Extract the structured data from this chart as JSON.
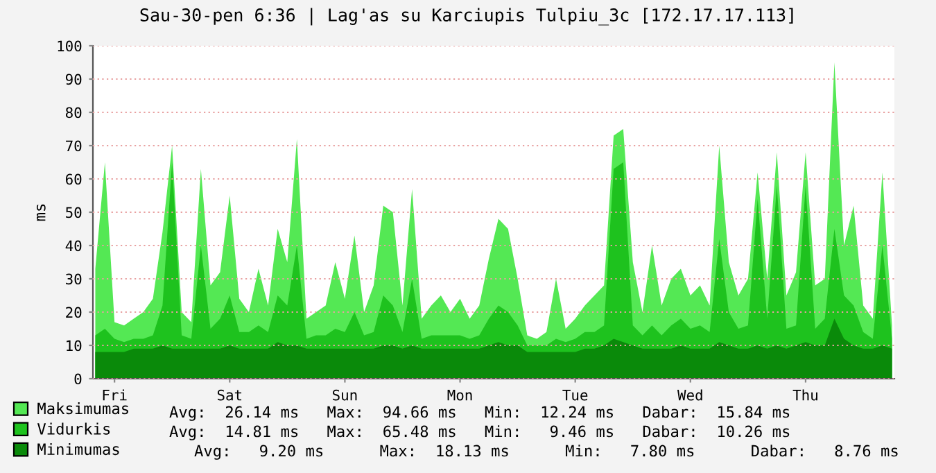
{
  "chart_data": {
    "type": "area",
    "title": "Sau-30-pen 6:36 | Lag'as su Karciupis Tulpiu_3c [172.17.17.113]",
    "ylabel": "ms",
    "categories": [
      null,
      null,
      "Fri",
      null,
      null,
      null,
      null,
      null,
      null,
      null,
      null,
      null,
      null,
      null,
      "Sat",
      null,
      null,
      null,
      null,
      null,
      null,
      null,
      null,
      null,
      null,
      null,
      "Sun",
      null,
      null,
      null,
      null,
      null,
      null,
      null,
      null,
      null,
      null,
      null,
      "Mon",
      null,
      null,
      null,
      null,
      null,
      null,
      null,
      null,
      null,
      null,
      null,
      "Tue",
      null,
      null,
      null,
      null,
      null,
      null,
      null,
      null,
      null,
      null,
      null,
      "Wed",
      null,
      null,
      null,
      null,
      null,
      null,
      null,
      null,
      null,
      null,
      null,
      "Thu",
      null,
      null,
      null,
      null,
      null,
      null,
      null,
      null,
      null
    ],
    "series": [
      {
        "name": "Maksimumas",
        "color": "#54e854",
        "values": [
          33,
          65,
          17,
          16,
          18,
          20,
          24,
          44,
          70,
          20,
          17,
          63,
          28,
          32,
          55,
          24,
          20,
          33,
          22,
          45,
          35,
          72,
          18,
          20,
          22,
          35,
          24,
          43,
          20,
          28,
          52,
          50,
          22,
          57,
          18,
          22,
          25,
          20,
          24,
          18,
          22,
          36,
          48,
          45,
          30,
          13,
          12,
          14,
          30,
          15,
          18,
          22,
          25,
          28,
          73,
          75,
          35,
          20,
          40,
          22,
          30,
          33,
          25,
          28,
          22,
          70,
          35,
          25,
          30,
          62,
          30,
          68,
          25,
          32,
          68,
          28,
          30,
          95,
          40,
          52,
          22,
          18,
          62,
          16
        ]
      },
      {
        "name": "Vidurkis",
        "color": "#1ec21e",
        "values": [
          13,
          15,
          12,
          11,
          12,
          12,
          13,
          22,
          65,
          13,
          12,
          40,
          15,
          18,
          25,
          14,
          14,
          16,
          14,
          25,
          22,
          40,
          12,
          13,
          13,
          15,
          14,
          20,
          13,
          14,
          25,
          22,
          14,
          30,
          12,
          13,
          13,
          13,
          13,
          12,
          13,
          18,
          22,
          20,
          16,
          10,
          10,
          10,
          12,
          11,
          12,
          14,
          14,
          16,
          63,
          65,
          16,
          13,
          16,
          13,
          16,
          18,
          15,
          16,
          14,
          42,
          20,
          15,
          16,
          54,
          18,
          58,
          15,
          16,
          58,
          15,
          18,
          45,
          25,
          22,
          14,
          12,
          40,
          12
        ]
      },
      {
        "name": "Minimumas",
        "color": "#0a8a0a",
        "values": [
          8,
          8,
          8,
          8,
          9,
          9,
          9,
          10,
          9,
          9,
          9,
          9,
          9,
          9,
          10,
          9,
          9,
          9,
          9,
          11,
          10,
          10,
          9,
          9,
          9,
          9,
          9,
          9,
          9,
          9,
          10,
          10,
          9,
          10,
          9,
          9,
          9,
          9,
          9,
          9,
          9,
          10,
          11,
          10,
          10,
          8,
          8,
          8,
          8,
          8,
          8,
          9,
          9,
          10,
          12,
          11,
          10,
          9,
          9,
          9,
          9,
          10,
          9,
          9,
          9,
          11,
          10,
          9,
          9,
          10,
          9,
          10,
          9,
          10,
          11,
          10,
          10,
          18,
          12,
          10,
          9,
          9,
          10,
          9
        ]
      }
    ],
    "ylim": [
      0,
      100
    ],
    "yticks": [
      0,
      10,
      20,
      30,
      40,
      50,
      60,
      70,
      80,
      90,
      100
    ],
    "grid": "y",
    "legend": "bottom left",
    "annotations": [
      "Avg:  26.14 ms   Max:  94.66 ms   Min:  12.24 ms   Dabar:  15.84 ms",
      "Avg:  14.81 ms   Max:  65.48 ms   Min:   9.46 ms   Dabar:  10.26 ms",
      "Avg:   9.20 ms      Max:  18.13 ms      Min:   7.80 ms      Dabar:   8.76 ms"
    ]
  }
}
